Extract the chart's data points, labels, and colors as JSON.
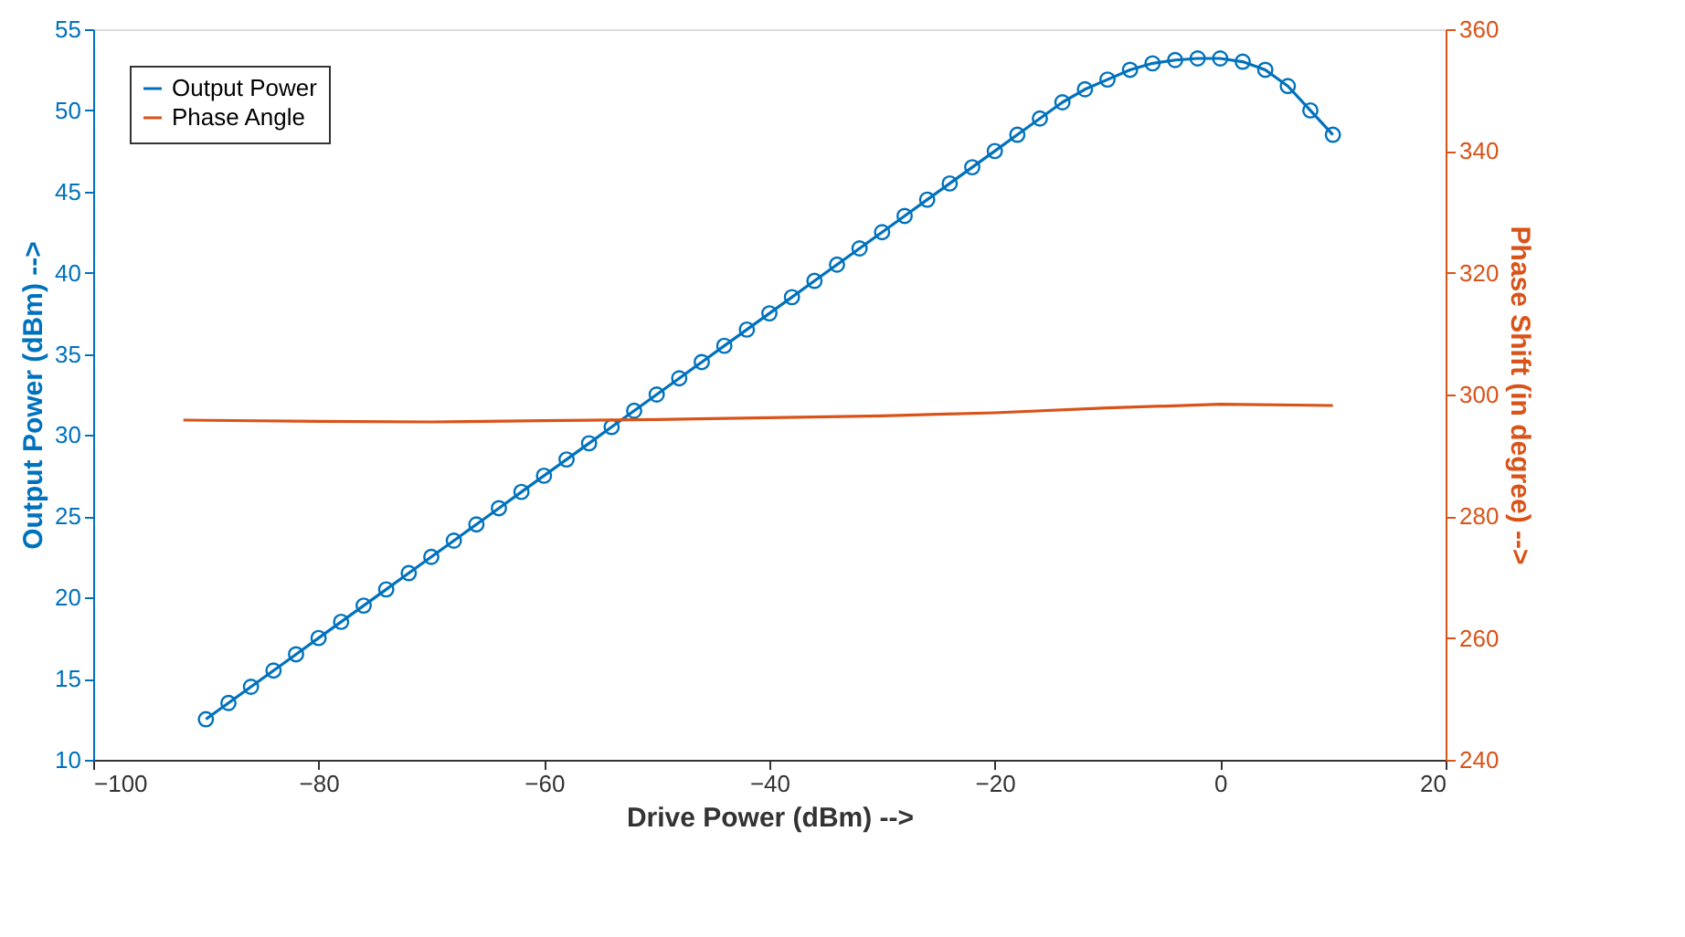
{
  "chart_data": {
    "type": "line",
    "xlabel": "Drive Power (dBm) -->",
    "ylabel": "Output Power (dBm) -->",
    "y2label": "Phase Shift (in degree) -->",
    "xlim": [
      -100,
      20
    ],
    "xticks": [
      -100,
      -80,
      -60,
      -40,
      -20,
      0,
      20
    ],
    "ylim": [
      10,
      55
    ],
    "yticks": [
      10,
      15,
      20,
      25,
      30,
      35,
      40,
      45,
      50,
      55
    ],
    "y2lim": [
      240,
      360
    ],
    "y2ticks": [
      240,
      260,
      280,
      300,
      320,
      340,
      360
    ],
    "grid": false,
    "legend": "top left",
    "series": [
      {
        "name": "Output Power",
        "color": "#0072bd",
        "marker": "circle",
        "x": [
          -90,
          -88,
          -86,
          -84,
          -82,
          -80,
          -78,
          -76,
          -74,
          -72,
          -70,
          -68,
          -66,
          -64,
          -62,
          -60,
          -58,
          -56,
          -54,
          -52,
          -50,
          -48,
          -46,
          -44,
          -42,
          -40,
          -38,
          -36,
          -34,
          -32,
          -30,
          -28,
          -26,
          -24,
          -22,
          -20,
          -18,
          -16,
          -14,
          -12,
          -10,
          -8,
          -6,
          -4,
          -2,
          0,
          2,
          4,
          6,
          8,
          10
        ],
        "values": [
          12.5,
          13.5,
          14.5,
          15.5,
          16.5,
          17.5,
          18.5,
          19.5,
          20.5,
          21.5,
          22.5,
          23.5,
          24.5,
          25.5,
          26.5,
          27.5,
          28.5,
          29.5,
          30.5,
          31.5,
          32.5,
          33.5,
          34.5,
          35.5,
          36.5,
          37.5,
          38.5,
          39.5,
          40.5,
          41.5,
          42.5,
          43.5,
          44.5,
          45.5,
          46.5,
          47.5,
          48.5,
          49.5,
          50.5,
          51.3,
          51.9,
          52.5,
          52.9,
          53.1,
          53.2,
          53.2,
          53.0,
          52.5,
          51.5,
          50.0,
          48.5
        ]
      },
      {
        "name": "Phase Angle",
        "color": "#d95319",
        "marker": "none",
        "axis": "y2",
        "x": [
          -92,
          -80,
          -70,
          -60,
          -50,
          -40,
          -30,
          -20,
          -10,
          0,
          10
        ],
        "values": [
          295.8,
          295.6,
          295.5,
          295.7,
          295.9,
          296.2,
          296.5,
          297.0,
          297.8,
          298.4,
          298.2
        ]
      }
    ]
  }
}
